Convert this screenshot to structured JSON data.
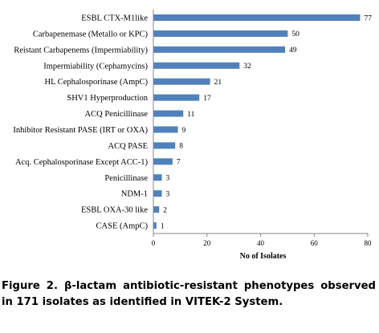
{
  "chart_data": {
    "type": "bar",
    "orientation": "horizontal",
    "categories": [
      "ESBL CTX-M1like",
      "Carbapenemase (Metallo or KPC)",
      "Reistant Carbapenems (Impermiability)",
      "Impermiability (Cephamycins)",
      "HL Cephalosporinase (AmpC)",
      "SHV1 Hyperproduction",
      "ACQ Penicillinase",
      "Inhibitor Resistant PASE (IRT or OXA)",
      "ACQ PASE",
      "Acq. Cephalosporinase Except ACC-1)",
      "Penicillinase",
      "NDM-1",
      "ESBL OXA-30 like",
      "CASE (AmpC)"
    ],
    "values": [
      77,
      50,
      49,
      32,
      21,
      17,
      11,
      9,
      8,
      7,
      3,
      3,
      2,
      1
    ],
    "value_labels": [
      "77",
      "50",
      "49",
      "32",
      "21",
      "17",
      "11",
      "9",
      "8",
      "7",
      "3",
      "3",
      "2",
      "1"
    ],
    "xlabel": "No of Isolates",
    "xlim": [
      0,
      80
    ],
    "xticks": [
      "0",
      "20",
      "40",
      "60",
      "80"
    ],
    "grid": false,
    "legend": "none",
    "bar_color": "#4f81bd"
  },
  "caption": "Figure 2. β-lactam antibiotic-resistant phenotypes observed in 171 isolates as identified in VITEK-2 System."
}
